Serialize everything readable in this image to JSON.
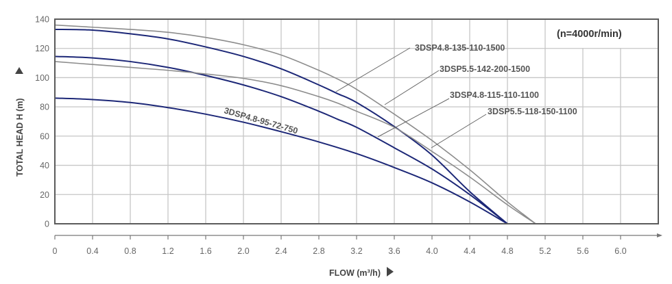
{
  "chart_data": {
    "type": "line",
    "annotation": "(n=4000r/min)",
    "xlabel": "FLOW (m³/h)",
    "ylabel": "TOTAL HEAD H (m)",
    "xlim": [
      0,
      6.4
    ],
    "ylim": [
      0,
      140
    ],
    "x_ticks": [
      "0",
      "0.4",
      "0.8",
      "1.2",
      "1.6",
      "2.0",
      "2.4",
      "2.8",
      "3.2",
      "3.6",
      "4.0",
      "4.4",
      "4.8",
      "5.2",
      "5.6",
      "6.0"
    ],
    "y_ticks": [
      "0",
      "20",
      "40",
      "60",
      "80",
      "100",
      "120",
      "140"
    ],
    "grid": true,
    "colors": {
      "blue": "#1c2777",
      "gray": "#8c8c8c",
      "grid": "#c6c6c6",
      "frame": "#5a5a5a"
    },
    "series": [
      {
        "name": "3DSP5.5-142-200-1500",
        "color": "gray",
        "x": [
          0,
          0.4,
          0.8,
          1.2,
          1.6,
          2.0,
          2.4,
          2.8,
          3.0,
          3.2,
          3.6,
          4.0,
          4.4,
          4.8,
          5.1
        ],
        "y": [
          136,
          134.5,
          133,
          131,
          127.5,
          122.5,
          115.5,
          105,
          99,
          92,
          75,
          57,
          37,
          15,
          0
        ]
      },
      {
        "name": "3DSP4.8-135-110-1500",
        "color": "blue",
        "x": [
          0,
          0.4,
          0.8,
          1.2,
          1.6,
          2.0,
          2.4,
          2.8,
          3.0,
          3.2,
          3.6,
          4.0,
          4.4,
          4.8
        ],
        "y": [
          133,
          132.5,
          130,
          126.5,
          121,
          114.5,
          106,
          95,
          89,
          83,
          66.5,
          47,
          22,
          0
        ]
      },
      {
        "name": "3DSP4.8-115-110-1100",
        "color": "blue",
        "x": [
          0,
          0.4,
          0.8,
          1.2,
          1.6,
          2.0,
          2.4,
          2.8,
          3.0,
          3.2,
          3.6,
          4.0,
          4.4,
          4.8
        ],
        "y": [
          114.5,
          113.5,
          111,
          107,
          101.5,
          95,
          87,
          77,
          71.5,
          66,
          52,
          37.5,
          20,
          0
        ]
      },
      {
        "name": "3DSP5.5-118-150-1100",
        "color": "gray",
        "x": [
          0,
          0.4,
          0.8,
          1.2,
          1.6,
          2.0,
          2.4,
          2.8,
          3.0,
          3.2,
          3.6,
          4.0,
          4.4,
          4.8,
          5.1
        ],
        "y": [
          111,
          109,
          107,
          105,
          102.5,
          99.5,
          94.5,
          87,
          82.5,
          77,
          66,
          49.5,
          32,
          13,
          0
        ]
      },
      {
        "name": "3DSP4.8-95-72-750",
        "color": "blue",
        "x": [
          0,
          0.4,
          0.8,
          1.2,
          1.6,
          2.0,
          2.4,
          2.8,
          3.2,
          3.6,
          4.0,
          4.4,
          4.8
        ],
        "y": [
          86,
          85,
          83,
          79.5,
          75,
          69.5,
          63,
          56,
          48,
          38.5,
          28,
          15,
          0
        ]
      }
    ]
  }
}
